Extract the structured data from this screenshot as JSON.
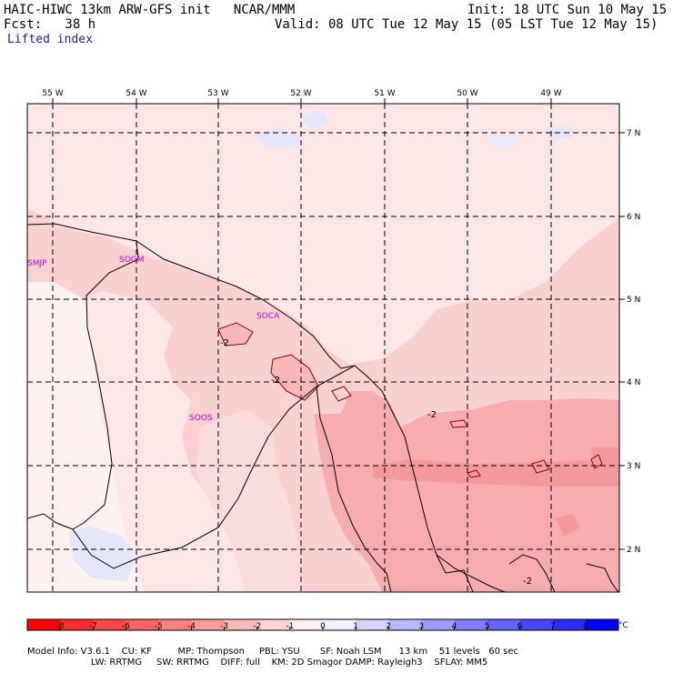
{
  "header": {
    "model_line": "HAIC-HIWC 13km ARW-GFS init   NCAR/MMM",
    "init_line": "Init: 18 UTC Sun 10 May 15",
    "fcst_line": "Fcst:   38 h",
    "valid_line": "Valid: 08 UTC Tue 12 May 15 (05 LST Tue 12 May 15)",
    "field_name": "Lifted index"
  },
  "map": {
    "lon_labels": [
      "55 W",
      "54 W",
      "53 W",
      "52 W",
      "51 W",
      "50 W",
      "49 W"
    ],
    "lat_labels": [
      "7 N",
      "6 N",
      "5 N",
      "4 N",
      "3 N",
      "2 N"
    ],
    "stations": [
      "SMJP",
      "SOGM",
      "SOCA",
      "SOOS"
    ],
    "contour_labels": [
      "-2",
      "-2",
      "-2",
      "-2"
    ],
    "colors": {
      "bg_light": "#fde6e6",
      "pale": "#fdf1f1",
      "shade_minus1": "#fbd0d0",
      "shade_minus2": "#f7adad",
      "blue_pale": "#e6e6fb",
      "station_color": "#cc00cc"
    }
  },
  "colorbar": {
    "ticks": [
      "-8",
      "-7",
      "-6",
      "-5",
      "-4",
      "-3",
      "-2",
      "-1",
      "0",
      "1",
      "2",
      "3",
      "4",
      "5",
      "6",
      "7",
      "8"
    ],
    "unit": "°C",
    "colors": [
      "#ff0000",
      "#ff2b2b",
      "#ff4747",
      "#ff6363",
      "#ff8080",
      "#ff9c9c",
      "#ffb8b8",
      "#ffd4d4",
      "#fff0f0",
      "#f0f0ff",
      "#d4d4ff",
      "#b8b8ff",
      "#9c9cff",
      "#8080ff",
      "#6363ff",
      "#4747ff",
      "#2b2bff",
      "#0000ff"
    ]
  },
  "footer": {
    "line1": "Model Info: V3.6.1    CU: KF         MP: Thompson     PBL: YSU       SF: Noah LSM      13 km    51 levels   60 sec",
    "line2": "                      LW: RRTMG     SW: RRTMG    DIFF: full    KM: 2D Smagor DAMP: Rayleigh3    SFLAY: MM5"
  }
}
